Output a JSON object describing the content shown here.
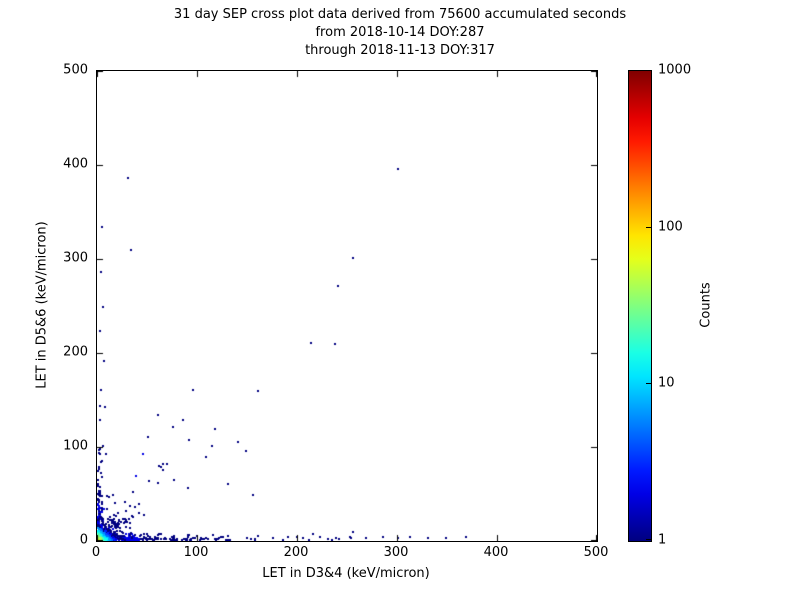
{
  "chart_data": {
    "type": "scatter",
    "title_lines": [
      "31 day SEP cross plot data derived from 75600 accumulated seconds",
      "from 2018-10-14 DOY:287",
      "through 2018-11-13 DOY:317"
    ],
    "xlabel": "LET in D3&4 (keV/micron)",
    "ylabel": "LET in D5&6 (keV/micron)",
    "xlim": [
      0,
      500
    ],
    "ylim": [
      0,
      500
    ],
    "xticks": [
      0,
      100,
      200,
      300,
      400,
      500
    ],
    "yticks": [
      0,
      100,
      200,
      300,
      400,
      500
    ],
    "grid": false,
    "colorbar": {
      "label": "Counts",
      "scale": "log",
      "min": 1,
      "max": 1000,
      "ticks": [
        1,
        10,
        100,
        1000
      ],
      "colormap": "jet"
    },
    "render_seed": 20181014,
    "points": [
      [
        300,
        395,
        1
      ],
      [
        30,
        385,
        1
      ],
      [
        4,
        333,
        1
      ],
      [
        255,
        300,
        1
      ],
      [
        33,
        308,
        1
      ],
      [
        240,
        270,
        1
      ],
      [
        237,
        208,
        1
      ],
      [
        213,
        210,
        1
      ],
      [
        160,
        158,
        1
      ],
      [
        95,
        160,
        1
      ],
      [
        117,
        118,
        1
      ],
      [
        140,
        104,
        1
      ],
      [
        75,
        120,
        1
      ],
      [
        85,
        128,
        1
      ],
      [
        60,
        133,
        1
      ],
      [
        50,
        110,
        1
      ],
      [
        108,
        88,
        1
      ],
      [
        148,
        95,
        1
      ],
      [
        130,
        60,
        1
      ],
      [
        155,
        48,
        1
      ],
      [
        3,
        285,
        1
      ],
      [
        5,
        248,
        1
      ],
      [
        2,
        222,
        1
      ],
      [
        6,
        190,
        1
      ],
      [
        3,
        160,
        1
      ],
      [
        7,
        142,
        1
      ],
      [
        2,
        128,
        1
      ],
      [
        5,
        100,
        1
      ],
      [
        8,
        92,
        1
      ],
      [
        4,
        84,
        1
      ],
      [
        160,
        4,
        1
      ],
      [
        175,
        2,
        1
      ],
      [
        190,
        3,
        1
      ],
      [
        205,
        2,
        1
      ],
      [
        222,
        3,
        1
      ],
      [
        238,
        2,
        1
      ],
      [
        252,
        3,
        1
      ],
      [
        268,
        2,
        1
      ],
      [
        285,
        3,
        1
      ],
      [
        300,
        2,
        1
      ],
      [
        312,
        3,
        1
      ],
      [
        330,
        2,
        1
      ],
      [
        348,
        2,
        1
      ],
      [
        368,
        3,
        1
      ],
      [
        255,
        8,
        1
      ],
      [
        215,
        6,
        1
      ],
      [
        45,
        92,
        2
      ],
      [
        38,
        68,
        2
      ],
      [
        65,
        75,
        1
      ],
      [
        90,
        55,
        1
      ]
    ],
    "clusters": [
      {
        "name": "x-axis-band",
        "mode": "exp",
        "n": 260,
        "xscale": 45,
        "yscale": 2,
        "xmax": 260,
        "ymax": 7,
        "cmax": 3,
        "cdecay": 60
      },
      {
        "name": "y-axis-band",
        "mode": "exp",
        "n": 130,
        "xscale": 2,
        "yscale": 28,
        "xmax": 7,
        "ymax": 150,
        "cmax": 3,
        "cdecay": 60
      },
      {
        "name": "diagonal-spread",
        "mode": "diag",
        "n": 85,
        "xscale": 30,
        "yscale": 30,
        "xmax": 120,
        "ymax": 120,
        "cmax": 2,
        "cdecay": 100
      },
      {
        "name": "origin-halo",
        "mode": "exp",
        "n": 260,
        "xscale": 10,
        "yscale": 10,
        "xmax": 55,
        "ymax": 55,
        "cmax": 4,
        "cdecay": 12
      },
      {
        "name": "origin-core",
        "mode": "exp",
        "n": 700,
        "xscale": 3,
        "yscale": 3,
        "xmax": 20,
        "ymax": 20,
        "cmax": 80,
        "cdecay": 5
      }
    ]
  }
}
